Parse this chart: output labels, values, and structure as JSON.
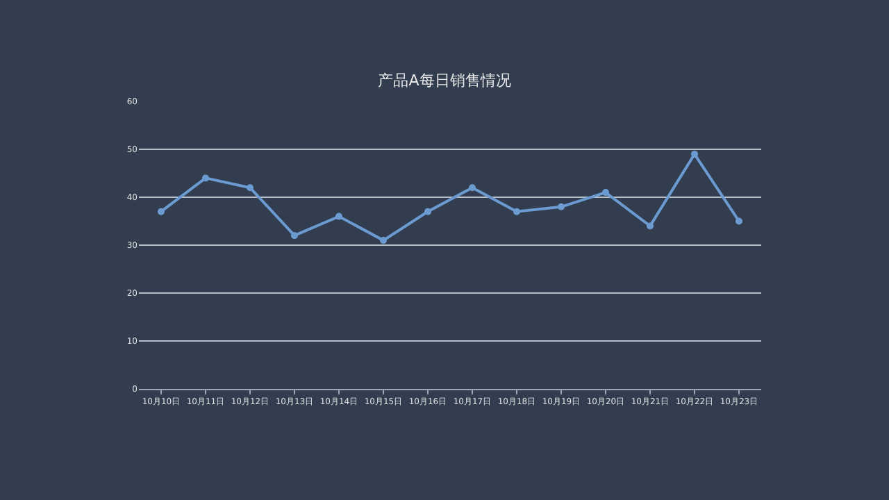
{
  "chart_data": {
    "type": "line",
    "title": "产品A每日销售情况",
    "categories": [
      "10月10日",
      "10月11日",
      "10月12日",
      "10月13日",
      "10月14日",
      "10月15日",
      "10月16日",
      "10月17日",
      "10月18日",
      "10月19日",
      "10月20日",
      "10月21日",
      "10月22日",
      "10月23日"
    ],
    "series": [
      {
        "color": "#6b9bd1",
        "values": [
          37,
          44,
          42,
          32,
          36,
          31,
          37,
          42,
          37,
          38,
          41,
          34,
          49,
          35
        ]
      }
    ],
    "ylim": [
      0,
      60
    ],
    "yticks": [
      0,
      10,
      20,
      30,
      40,
      50,
      60
    ],
    "grid": "y",
    "marker": "circle",
    "line_style": "solid",
    "legend": false
  }
}
